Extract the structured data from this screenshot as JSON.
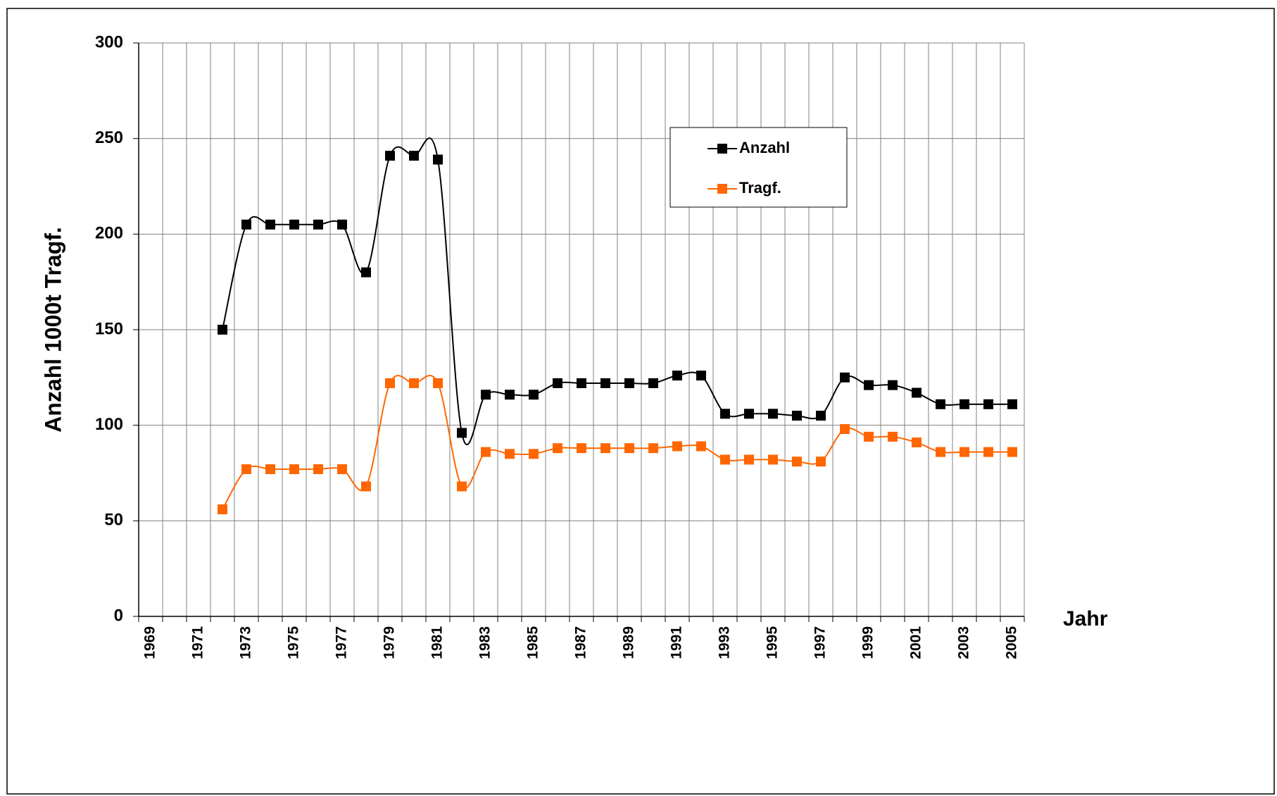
{
  "chart_data": {
    "type": "line",
    "y_label": "Anzahl  1000t Tragf.",
    "x_label": "Jahr",
    "categories": [
      "1969",
      null,
      "1971",
      null,
      "1973",
      null,
      "1975",
      null,
      "1977",
      null,
      "1979",
      null,
      "1981",
      null,
      "1983",
      null,
      "1985",
      null,
      "1987",
      null,
      "1989",
      null,
      "1991",
      null,
      "1993",
      null,
      "1995",
      null,
      "1997",
      null,
      "1999",
      null,
      "2001",
      null,
      "2003",
      null,
      "2005"
    ],
    "series": [
      {
        "name": "Anzahl",
        "color": "#000000",
        "values": [
          null,
          null,
          null,
          150,
          205,
          205,
          205,
          205,
          205,
          180,
          241,
          241,
          239,
          96,
          116,
          116,
          116,
          122,
          122,
          122,
          122,
          122,
          126,
          126,
          106,
          106,
          106,
          105,
          105,
          125,
          121,
          121,
          117,
          111,
          111,
          111,
          111
        ]
      },
      {
        "name": "Tragf.",
        "color": "#ff6600",
        "values": [
          null,
          null,
          null,
          56,
          77,
          77,
          77,
          77,
          77,
          68,
          122,
          122,
          122,
          68,
          86,
          85,
          85,
          88,
          88,
          88,
          88,
          88,
          89,
          89,
          82,
          82,
          82,
          81,
          81,
          98,
          94,
          94,
          91,
          86,
          86,
          86,
          86
        ]
      }
    ],
    "ylim": [
      0,
      300
    ],
    "yticks": [
      0,
      50,
      100,
      150,
      200,
      250,
      300
    ],
    "grid": true
  }
}
